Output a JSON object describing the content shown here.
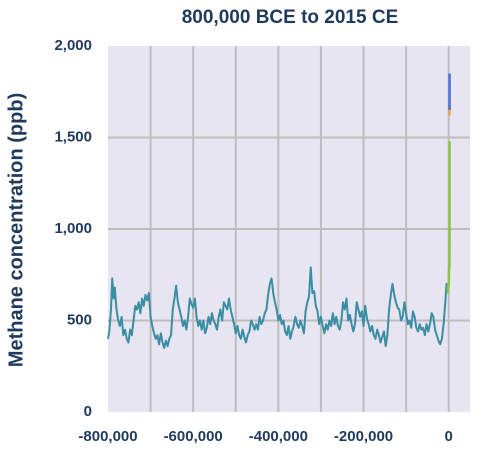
{
  "chart_data": {
    "type": "line",
    "title": "800,000 BCE to 2015 CE",
    "y_label": "Methane concentration (ppb)",
    "xlim": [
      -800000,
      50000
    ],
    "ylim": [
      0,
      2000
    ],
    "xticks": [
      {
        "value": -800000,
        "label": "-800,000"
      },
      {
        "value": -600000,
        "label": "-600,000"
      },
      {
        "value": -400000,
        "label": "-400,000"
      },
      {
        "value": -200000,
        "label": "-200,000"
      },
      0
    ],
    "xgrid": [
      -700000,
      -600000,
      -500000,
      -400000,
      -300000,
      -200000,
      -100000,
      0
    ],
    "yticks": [
      0,
      500,
      {
        "value": 1000,
        "label": "1,000"
      },
      {
        "value": 1500,
        "label": "1,500"
      },
      {
        "value": 2000,
        "label": "2,000"
      }
    ],
    "grid": true,
    "series": [
      {
        "color": "#3a8ea3",
        "x": [
          -800000,
          -797000,
          -793000,
          -790000,
          -787000,
          -784000,
          -780000,
          -776000,
          -772000,
          -768000,
          -764000,
          -760000,
          -756000,
          -752000,
          -748000,
          -744000,
          -740000,
          -736000,
          -732000,
          -728000,
          -724000,
          -720000,
          -716000,
          -712000,
          -708000,
          -704000,
          -700000,
          -696000,
          -692000,
          -688000,
          -684000,
          -680000,
          -676000,
          -672000,
          -668000,
          -664000,
          -660000,
          -656000,
          -652000,
          -648000,
          -644000,
          -640000,
          -636000,
          -632000,
          -628000,
          -624000,
          -620000,
          -616000,
          -612000,
          -608000,
          -604000,
          -600000,
          -596000,
          -592000,
          -588000,
          -584000,
          -580000,
          -576000,
          -572000,
          -568000,
          -564000,
          -560000,
          -556000,
          -552000,
          -548000,
          -544000,
          -540000,
          -536000,
          -532000,
          -528000,
          -524000,
          -520000,
          -516000,
          -512000,
          -508000,
          -504000,
          -500000,
          -496000,
          -492000,
          -488000,
          -484000,
          -480000,
          -476000,
          -472000,
          -468000,
          -464000,
          -460000,
          -456000,
          -452000,
          -448000,
          -444000,
          -440000,
          -436000,
          -432000,
          -428000,
          -424000,
          -420000,
          -416000,
          -412000,
          -408000,
          -404000,
          -400000,
          -396000,
          -392000,
          -388000,
          -384000,
          -380000,
          -376000,
          -372000,
          -368000,
          -364000,
          -360000,
          -356000,
          -352000,
          -348000,
          -344000,
          -340000,
          -336000,
          -332000,
          -328000,
          -324000,
          -320000,
          -316000,
          -312000,
          -308000,
          -304000,
          -300000,
          -296000,
          -292000,
          -288000,
          -284000,
          -280000,
          -276000,
          -272000,
          -268000,
          -264000,
          -260000,
          -256000,
          -252000,
          -248000,
          -244000,
          -240000,
          -236000,
          -232000,
          -228000,
          -224000,
          -220000,
          -216000,
          -212000,
          -208000,
          -204000,
          -200000,
          -196000,
          -192000,
          -188000,
          -184000,
          -180000,
          -176000,
          -172000,
          -168000,
          -164000,
          -160000,
          -156000,
          -152000,
          -148000,
          -144000,
          -140000,
          -136000,
          -132000,
          -128000,
          -124000,
          -120000,
          -116000,
          -112000,
          -108000,
          -104000,
          -100000,
          -96000,
          -92000,
          -88000,
          -84000,
          -80000,
          -76000,
          -72000,
          -68000,
          -64000,
          -60000,
          -56000,
          -52000,
          -48000,
          -44000,
          -40000,
          -36000,
          -32000,
          -28000,
          -24000,
          -20000,
          -16000,
          -12000,
          -8000,
          -5000,
          -2000
        ],
        "values": [
          400,
          440,
          560,
          730,
          620,
          680,
          560,
          500,
          470,
          520,
          420,
          450,
          400,
          380,
          450,
          420,
          500,
          580,
          560,
          600,
          540,
          620,
          580,
          640,
          610,
          650,
          520,
          470,
          430,
          400,
          420,
          370,
          430,
          380,
          350,
          390,
          360,
          400,
          420,
          560,
          620,
          690,
          600,
          560,
          520,
          470,
          500,
          450,
          520,
          620,
          590,
          570,
          620,
          520,
          470,
          500,
          450,
          500,
          430,
          460,
          520,
          480,
          540,
          500,
          480,
          450,
          520,
          560,
          500,
          600,
          580,
          560,
          620,
          560,
          520,
          480,
          430,
          470,
          420,
          400,
          450,
          410,
          380,
          420,
          440,
          500,
          480,
          450,
          480,
          450,
          520,
          480,
          500,
          540,
          560,
          640,
          700,
          730,
          650,
          600,
          560,
          500,
          530,
          480,
          500,
          440,
          420,
          470,
          400,
          440,
          470,
          520,
          480,
          460,
          500,
          470,
          430,
          550,
          600,
          630,
          790,
          650,
          660,
          580,
          550,
          480,
          520,
          470,
          430,
          480,
          450,
          500,
          470,
          540,
          480,
          520,
          470,
          450,
          500,
          600,
          560,
          620,
          500,
          530,
          480,
          440,
          480,
          600,
          560,
          520,
          550,
          470,
          580,
          510,
          480,
          440,
          470,
          420,
          400,
          450,
          420,
          380,
          410,
          440,
          360,
          420,
          560,
          640,
          700,
          640,
          600,
          570,
          560,
          500,
          520,
          600,
          540,
          480,
          500,
          460,
          550,
          520,
          460,
          440,
          480,
          450,
          460,
          420,
          480,
          440,
          480,
          540,
          520,
          450,
          420,
          390,
          370,
          400,
          480,
          600,
          700,
          650
        ]
      },
      {
        "color": "#8cc63f",
        "x": [
          -2000,
          -1000,
          0,
          1000,
          1500,
          1800,
          1900,
          1950,
          1980
        ],
        "values": [
          650,
          700,
          690,
          800,
          780,
          850,
          950,
          1200,
          1480
        ]
      },
      {
        "color": "#f5a33e",
        "x": [
          1978,
          1984,
          1990
        ],
        "values": [
          1620,
          1650,
          1680
        ]
      },
      {
        "color": "#4a6fd6",
        "x": [
          1983,
          1995,
          2005,
          2015
        ],
        "values": [
          1650,
          1750,
          1790,
          1850
        ]
      }
    ]
  }
}
